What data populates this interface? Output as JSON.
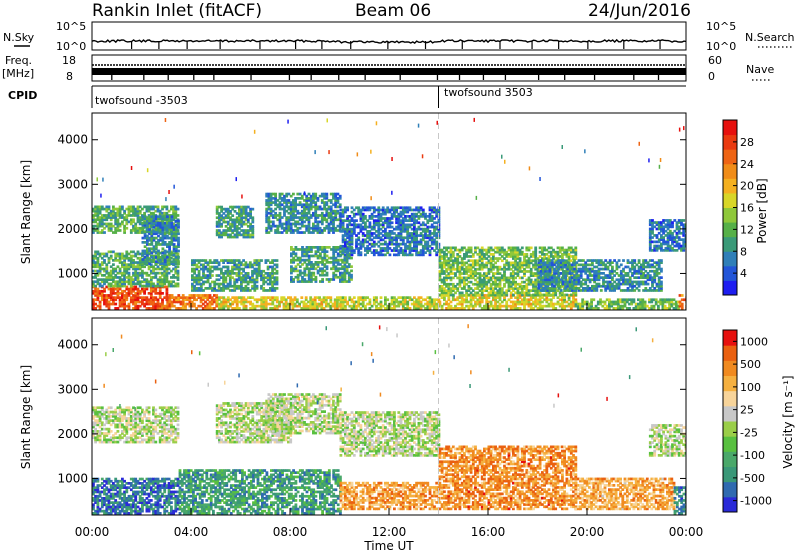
{
  "header": {
    "station": "Rankin Inlet (fitACF)",
    "beam": "Beam 06",
    "date": "24/Jun/2016"
  },
  "panels": {
    "nsky": {
      "label": "N.Sky",
      "right_label": "N.Search",
      "left_ticks": [
        "10^5",
        "10^0"
      ],
      "right_ticks": [
        "10^5",
        "10^0"
      ]
    },
    "freq": {
      "label_top": "Freq.",
      "label_bottom": "[MHz]",
      "right_label": "Nave",
      "left_ticks": [
        "18",
        "8"
      ],
      "right_ticks": [
        "60",
        "0"
      ]
    },
    "cpid": {
      "label": "CPID",
      "segments": [
        {
          "name": "twofsound -3503",
          "start_hour": 0
        },
        {
          "name": "twofsound 3503",
          "start_hour": 14
        }
      ]
    }
  },
  "chart_data": [
    {
      "type": "heatmap",
      "name": "power-panel",
      "xlabel": "",
      "ylabel": "Slant Range [km]",
      "x_range_hours": [
        0,
        24
      ],
      "ylim": [
        180,
        4600
      ],
      "y_ticks": [
        1000,
        2000,
        3000,
        4000
      ],
      "colorbar": {
        "label": "Power [dB]",
        "range": [
          0,
          32
        ],
        "ticks": [
          "4",
          "8",
          "12",
          "16",
          "20",
          "24",
          "28"
        ],
        "colors": [
          "#1e1ef0",
          "#2255d8",
          "#2f7fb8",
          "#3a9a78",
          "#56b048",
          "#8fc83a",
          "#d8d628",
          "#f4b020",
          "#f08c18",
          "#ee6414",
          "#ea3a10",
          "#e6100e"
        ]
      },
      "mode_change_hour": 14,
      "regions": [
        {
          "t": [
            0.0,
            3.0
          ],
          "r": [
            200,
            700
          ],
          "level": 0.85
        },
        {
          "t": [
            3.0,
            5.0
          ],
          "r": [
            200,
            500
          ],
          "level": 0.75
        },
        {
          "t": [
            5.0,
            10.0
          ],
          "r": [
            200,
            450
          ],
          "level": 0.55
        },
        {
          "t": [
            10.0,
            14.0
          ],
          "r": [
            200,
            450
          ],
          "level": 0.5
        },
        {
          "t": [
            14.0,
            19.5
          ],
          "r": [
            200,
            500
          ],
          "level": 0.55
        },
        {
          "t": [
            19.5,
            23.7
          ],
          "r": [
            200,
            420
          ],
          "level": 0.4
        },
        {
          "t": [
            23.7,
            24.0
          ],
          "r": [
            200,
            500
          ],
          "level": 0.75
        },
        {
          "t": [
            0.0,
            3.5
          ],
          "r": [
            700,
            1500
          ],
          "level": 0.35
        },
        {
          "t": [
            0.0,
            3.5
          ],
          "r": [
            1900,
            2500
          ],
          "level": 0.35
        },
        {
          "t": [
            2.0,
            3.5
          ],
          "r": [
            1200,
            2300
          ],
          "level": 0.25
        },
        {
          "t": [
            4.0,
            7.5
          ],
          "r": [
            600,
            1300
          ],
          "level": 0.3
        },
        {
          "t": [
            5.0,
            6.5
          ],
          "r": [
            1800,
            2500
          ],
          "level": 0.3
        },
        {
          "t": [
            7.0,
            10.0
          ],
          "r": [
            1900,
            2800
          ],
          "level": 0.25
        },
        {
          "t": [
            8.0,
            10.5
          ],
          "r": [
            800,
            1600
          ],
          "level": 0.3
        },
        {
          "t": [
            10.0,
            14.0
          ],
          "r": [
            1400,
            2500
          ],
          "level": 0.2
        },
        {
          "t": [
            14.0,
            19.5
          ],
          "r": [
            500,
            1600
          ],
          "level": 0.4
        },
        {
          "t": [
            18.0,
            23.0
          ],
          "r": [
            600,
            1300
          ],
          "level": 0.25
        },
        {
          "t": [
            22.5,
            24.0
          ],
          "r": [
            1500,
            2200
          ],
          "level": 0.2
        }
      ]
    },
    {
      "type": "heatmap",
      "name": "velocity-panel",
      "xlabel": "Time UT",
      "ylabel": "Slant Range [km]",
      "x_range_hours": [
        0,
        24
      ],
      "ylim": [
        180,
        4600
      ],
      "y_ticks": [
        1000,
        2000,
        3000,
        4000
      ],
      "x_tick_labels": [
        "00:00",
        "04:00",
        "08:00",
        "12:00",
        "16:00",
        "20:00",
        "00:00"
      ],
      "colorbar": {
        "label": "Velocity [m s⁻¹]",
        "ticks": [
          "1000",
          "500",
          "100",
          "25",
          "-25",
          "-100",
          "-500",
          "-1000"
        ],
        "colors": [
          "#2a2ad8",
          "#2f6ab0",
          "#3a9878",
          "#4aa86a",
          "#58c040",
          "#9ace48",
          "#c8c8c8",
          "#f7d49a",
          "#f5b040",
          "#f08a20",
          "#ea6010",
          "#e6100e"
        ]
      },
      "mode_change_hour": 14,
      "regions": [
        {
          "t": [
            0.0,
            3.5
          ],
          "r": [
            200,
            1000
          ],
          "level": 0.15
        },
        {
          "t": [
            0.0,
            3.5
          ],
          "r": [
            1800,
            2600
          ],
          "level": 0.5
        },
        {
          "t": [
            3.5,
            10.0
          ],
          "r": [
            200,
            1200
          ],
          "level": 0.25
        },
        {
          "t": [
            5.0,
            8.0
          ],
          "r": [
            1800,
            2700
          ],
          "level": 0.5
        },
        {
          "t": [
            7.0,
            10.0
          ],
          "r": [
            2000,
            2900
          ],
          "level": 0.5
        },
        {
          "t": [
            10.0,
            14.0
          ],
          "r": [
            1500,
            2500
          ],
          "level": 0.5
        },
        {
          "t": [
            10.0,
            14.0
          ],
          "r": [
            300,
            900
          ],
          "level": 0.75
        },
        {
          "t": [
            14.0,
            19.5
          ],
          "r": [
            300,
            1700
          ],
          "level": 0.78
        },
        {
          "t": [
            19.5,
            23.5
          ],
          "r": [
            300,
            1000
          ],
          "level": 0.72
        },
        {
          "t": [
            22.5,
            24.0
          ],
          "r": [
            1500,
            2200
          ],
          "level": 0.5
        },
        {
          "t": [
            23.5,
            24.0
          ],
          "r": [
            200,
            800
          ],
          "level": 0.2
        }
      ]
    }
  ]
}
